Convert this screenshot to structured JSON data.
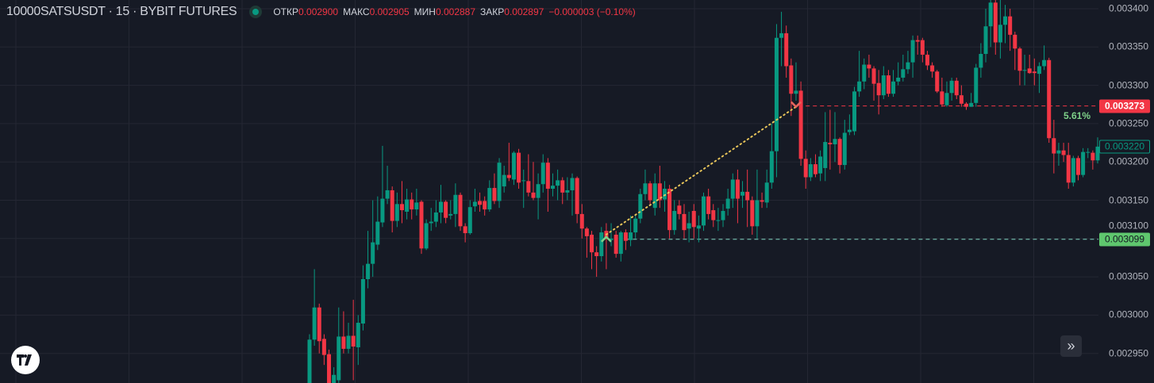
{
  "header": {
    "symbol": "10000SATSUSDT · 15 · BYBIT FUTURES",
    "open_label": "ОТКР",
    "open": "0.002900",
    "high_label": "МАКС",
    "high": "0.002905",
    "low_label": "МИН",
    "low": "0.002887",
    "close_label": "ЗАКР",
    "close": "0.002897",
    "change": "−0.000003 (−0.10%)"
  },
  "colors": {
    "background": "#161a25",
    "up": "#089981",
    "down": "#f23645",
    "grid": "#242733",
    "trade_line": "#e8c55a",
    "target_label": "#f23645",
    "entry_label": "#5fc76e",
    "last_label": "#089981"
  },
  "axis": {
    "ticks": [
      "0.003400",
      "0.003350",
      "0.003300",
      "0.003250",
      "0.003200",
      "0.003150",
      "0.003100",
      "0.003050",
      "0.003000",
      "0.002950"
    ]
  },
  "labels": {
    "exit_price": "0.003273",
    "entry_price": "0.003099",
    "last_price": "0.003220",
    "change_pct": "5.61%"
  },
  "icons": {
    "logo": "tradingview-logo",
    "scroll": "chevrons-right-icon",
    "entry": "arrow-up-icon",
    "exit": "arrow-down-icon"
  },
  "chart_data": {
    "type": "candlestick",
    "title": "10000SATSUSDT · 15 · BYBIT FUTURES",
    "ylim": [
      0.002911,
      0.003411
    ],
    "grid": true,
    "candles_ohlc_micro": [
      [
        2911,
        2975,
        2900,
        2968
      ],
      [
        2968,
        3060,
        2960,
        3010
      ],
      [
        3010,
        3015,
        2950,
        2966
      ],
      [
        2969,
        2975,
        2935,
        2948
      ],
      [
        2949,
        2955,
        2900,
        2911
      ],
      [
        2911,
        2932,
        2905,
        2922
      ],
      [
        2915,
        3010,
        2905,
        2972
      ],
      [
        2972,
        3005,
        2950,
        2956
      ],
      [
        2956,
        2990,
        2950,
        2973
      ],
      [
        2973,
        3020,
        2915,
        2959
      ],
      [
        2958,
        3000,
        2935,
        2990
      ],
      [
        2989,
        3065,
        2980,
        3047
      ],
      [
        3047,
        3110,
        3035,
        3067
      ],
      [
        3067,
        3150,
        3050,
        3095
      ],
      [
        3092,
        3155,
        3085,
        3122
      ],
      [
        3121,
        3221,
        3115,
        3152
      ],
      [
        3152,
        3195,
        3145,
        3163
      ],
      [
        3163,
        3168,
        3108,
        3123
      ],
      [
        3123,
        3160,
        3115,
        3145
      ],
      [
        3145,
        3175,
        3120,
        3137
      ],
      [
        3135,
        3165,
        3125,
        3151
      ],
      [
        3151,
        3160,
        3125,
        3138
      ],
      [
        3138,
        3165,
        3130,
        3147
      ],
      [
        3148,
        3150,
        3080,
        3087
      ],
      [
        3087,
        3125,
        3085,
        3120
      ],
      [
        3120,
        3140,
        3110,
        3122
      ],
      [
        3122,
        3150,
        3115,
        3134
      ],
      [
        3134,
        3170,
        3120,
        3148
      ],
      [
        3148,
        3150,
        3120,
        3127
      ],
      [
        3130,
        3150,
        3125,
        3132
      ],
      [
        3132,
        3172,
        3115,
        3157
      ],
      [
        3157,
        3160,
        3110,
        3116
      ],
      [
        3116,
        3120,
        3095,
        3107
      ],
      [
        3107,
        3150,
        3105,
        3141
      ],
      [
        3142,
        3165,
        3135,
        3148
      ],
      [
        3149,
        3160,
        3135,
        3144
      ],
      [
        3149,
        3155,
        3130,
        3138
      ],
      [
        3138,
        3176,
        3135,
        3166
      ],
      [
        3166,
        3185,
        3145,
        3149
      ],
      [
        3149,
        3205,
        3140,
        3199
      ],
      [
        3168,
        3195,
        3160,
        3183
      ],
      [
        3183,
        3225,
        3175,
        3179
      ],
      [
        3177,
        3214,
        3170,
        3212
      ],
      [
        3212,
        3217,
        3165,
        3173
      ],
      [
        3175,
        3190,
        3140,
        3176
      ],
      [
        3175,
        3210,
        3155,
        3160
      ],
      [
        3160,
        3200,
        3150,
        3153
      ],
      [
        3153,
        3185,
        3125,
        3171
      ],
      [
        3171,
        3210,
        3160,
        3199
      ],
      [
        3199,
        3205,
        3135,
        3165
      ],
      [
        3165,
        3185,
        3155,
        3169
      ],
      [
        3169,
        3190,
        3150,
        3176
      ],
      [
        3176,
        3180,
        3145,
        3160
      ],
      [
        3160,
        3180,
        3150,
        3163
      ],
      [
        3163,
        3185,
        3130,
        3179
      ],
      [
        3179,
        3181,
        3120,
        3132
      ],
      [
        3132,
        3145,
        3100,
        3113
      ],
      [
        3113,
        3115,
        3075,
        3103
      ],
      [
        3105,
        3110,
        3060,
        3082
      ],
      [
        3082,
        3090,
        3050,
        3077
      ],
      [
        3077,
        3115,
        3070,
        3108
      ],
      [
        3110,
        3120,
        3060,
        3100
      ],
      [
        3098,
        3120,
        3090,
        3100
      ],
      [
        3105,
        3110,
        3075,
        3080
      ],
      [
        3080,
        3110,
        3070,
        3108
      ],
      [
        3108,
        3112,
        3085,
        3097
      ],
      [
        3098,
        3130,
        3090,
        3108
      ],
      [
        3108,
        3130,
        3100,
        3126
      ],
      [
        3126,
        3165,
        3120,
        3158
      ],
      [
        3158,
        3190,
        3150,
        3172
      ],
      [
        3172,
        3175,
        3145,
        3150
      ],
      [
        3140,
        3185,
        3130,
        3172
      ],
      [
        3172,
        3195,
        3140,
        3150
      ],
      [
        3151,
        3175,
        3135,
        3165
      ],
      [
        3165,
        3170,
        3100,
        3111
      ],
      [
        3111,
        3150,
        3105,
        3136
      ],
      [
        3143,
        3150,
        3125,
        3132
      ],
      [
        3132,
        3145,
        3100,
        3111
      ],
      [
        3113,
        3135,
        3095,
        3120
      ],
      [
        3136,
        3145,
        3100,
        3115
      ],
      [
        3113,
        3130,
        3095,
        3117
      ],
      [
        3117,
        3160,
        3110,
        3155
      ],
      [
        3155,
        3165,
        3125,
        3132
      ],
      [
        3137,
        3145,
        3115,
        3124
      ],
      [
        3124,
        3140,
        3110,
        3124
      ],
      [
        3124,
        3145,
        3115,
        3136
      ],
      [
        3139,
        3165,
        3130,
        3152
      ],
      [
        3152,
        3185,
        3140,
        3177
      ],
      [
        3177,
        3190,
        3120,
        3152
      ],
      [
        3156,
        3175,
        3140,
        3161
      ],
      [
        3161,
        3190,
        3115,
        3150
      ],
      [
        3150,
        3155,
        3105,
        3116
      ],
      [
        3116,
        3190,
        3100,
        3150
      ],
      [
        3150,
        3160,
        3140,
        3148
      ],
      [
        3147,
        3190,
        3140,
        3173
      ],
      [
        3173,
        3250,
        3165,
        3214
      ],
      [
        3214,
        3380,
        3180,
        3362
      ],
      [
        3362,
        3396,
        3325,
        3368
      ],
      [
        3368,
        3378,
        3310,
        3325
      ],
      [
        3326,
        3335,
        3260,
        3289
      ],
      [
        3289,
        3330,
        3280,
        3293
      ],
      [
        3293,
        3305,
        3195,
        3204
      ],
      [
        3204,
        3215,
        3165,
        3180
      ],
      [
        3180,
        3205,
        3175,
        3197
      ],
      [
        3197,
        3210,
        3180,
        3184
      ],
      [
        3185,
        3215,
        3175,
        3207
      ],
      [
        3192,
        3265,
        3175,
        3226
      ],
      [
        3225,
        3268,
        3190,
        3223
      ],
      [
        3223,
        3265,
        3200,
        3230
      ],
      [
        3230,
        3232,
        3185,
        3196
      ],
      [
        3196,
        3255,
        3190,
        3238
      ],
      [
        3239,
        3262,
        3235,
        3242
      ],
      [
        3240,
        3298,
        3235,
        3292
      ],
      [
        3292,
        3345,
        3285,
        3305
      ],
      [
        3305,
        3335,
        3295,
        3327
      ],
      [
        3327,
        3340,
        3310,
        3322
      ],
      [
        3322,
        3325,
        3280,
        3302
      ],
      [
        3303,
        3320,
        3262,
        3287
      ],
      [
        3287,
        3325,
        3282,
        3313
      ],
      [
        3313,
        3320,
        3285,
        3289
      ],
      [
        3289,
        3320,
        3285,
        3305
      ],
      [
        3305,
        3330,
        3300,
        3310
      ],
      [
        3310,
        3340,
        3305,
        3321
      ],
      [
        3321,
        3345,
        3315,
        3330
      ],
      [
        3330,
        3365,
        3310,
        3359
      ],
      [
        3359,
        3365,
        3340,
        3357
      ],
      [
        3359,
        3362,
        3330,
        3340
      ],
      [
        3340,
        3345,
        3320,
        3326
      ],
      [
        3326,
        3330,
        3310,
        3318
      ],
      [
        3318,
        3320,
        3290,
        3292
      ],
      [
        3292,
        3310,
        3272,
        3275
      ],
      [
        3274,
        3305,
        3272,
        3290
      ],
      [
        3290,
        3310,
        3280,
        3306
      ],
      [
        3306,
        3310,
        3282,
        3287
      ],
      [
        3287,
        3300,
        3272,
        3276
      ],
      [
        3276,
        3278,
        3268,
        3272
      ],
      [
        3272,
        3290,
        3272,
        3277
      ],
      [
        3277,
        3328,
        3272,
        3323
      ],
      [
        3323,
        3355,
        3310,
        3341
      ],
      [
        3341,
        3400,
        3330,
        3377
      ],
      [
        3377,
        3420,
        3350,
        3408
      ],
      [
        3408,
        3412,
        3340,
        3356
      ],
      [
        3356,
        3415,
        3335,
        3379
      ],
      [
        3379,
        3405,
        3355,
        3390
      ],
      [
        3390,
        3400,
        3345,
        3366
      ],
      [
        3366,
        3370,
        3320,
        3348
      ],
      [
        3348,
        3350,
        3300,
        3319
      ],
      [
        3319,
        3340,
        3300,
        3320
      ],
      [
        3322,
        3340,
        3315,
        3316
      ],
      [
        3318,
        3335,
        3300,
        3316
      ],
      [
        3315,
        3330,
        3290,
        3325
      ],
      [
        3325,
        3352,
        3320,
        3333
      ],
      [
        3333,
        3336,
        3225,
        3231
      ],
      [
        3231,
        3255,
        3185,
        3211
      ],
      [
        3211,
        3225,
        3195,
        3215
      ],
      [
        3215,
        3225,
        3200,
        3209
      ],
      [
        3209,
        3225,
        3165,
        3173
      ],
      [
        3173,
        3208,
        3168,
        3205
      ],
      [
        3205,
        3208,
        3176,
        3183
      ],
      [
        3183,
        3218,
        3180,
        3213
      ],
      [
        3212,
        3218,
        3205,
        3213
      ],
      [
        3212,
        3215,
        3190,
        3202
      ],
      [
        3202,
        3232,
        3198,
        3220
      ]
    ],
    "price_unit_scale": 1e-06,
    "horizontal_lines": [
      {
        "price": 0.003273,
        "style": "dashed",
        "color": "#f23645"
      },
      {
        "price": 0.003099,
        "style": "dashed",
        "color": "#5fc76e"
      }
    ],
    "trade": {
      "entry_bar": 61,
      "entry_price": 0.003099,
      "exit_bar": 100,
      "exit_price": 0.003273,
      "change": "5.61%"
    }
  }
}
